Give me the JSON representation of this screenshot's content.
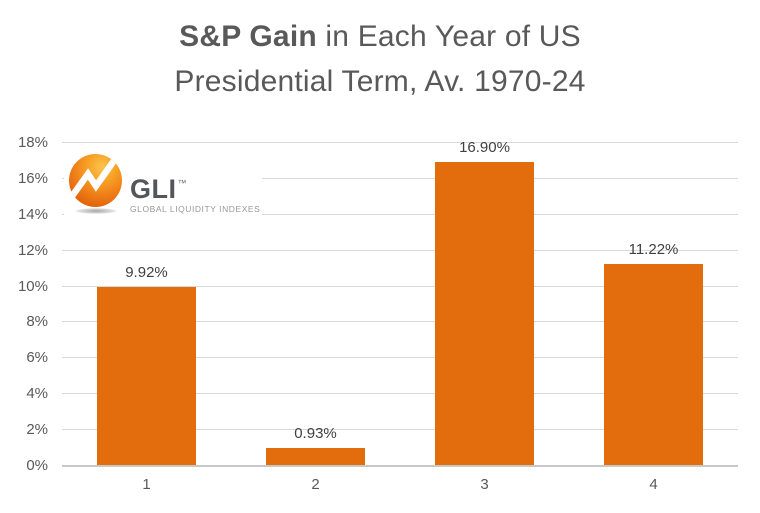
{
  "title": {
    "bold": "S&P Gain",
    "rest_line1": " in Each Year of US",
    "line2": "Presidential Term, Av. 1970-24"
  },
  "logo": {
    "name": "GLI",
    "tm": "™",
    "tagline": "GLOBAL LIQUIDITY INDEXES"
  },
  "chart_data": {
    "type": "bar",
    "title": "S&P Gain in Each Year of US Presidential Term, Av. 1970-24",
    "categories": [
      "1",
      "2",
      "3",
      "4"
    ],
    "values": [
      9.92,
      0.93,
      16.9,
      11.22
    ],
    "data_labels": [
      "9.92%",
      "0.93%",
      "16.90%",
      "11.22%"
    ],
    "xlabel": "",
    "ylabel": "",
    "ylim": [
      0,
      18
    ],
    "ytick_step": 2,
    "ytick_labels": [
      "0%",
      "2%",
      "4%",
      "6%",
      "8%",
      "10%",
      "12%",
      "14%",
      "16%",
      "18%"
    ],
    "grid": true,
    "legend": false,
    "bar_color": "#E36D0C",
    "gridline_color": "#D9D9D9",
    "axis_line_color": "#C8C8C8",
    "label_color": "#404040",
    "tick_color": "#595959",
    "bar_width_fraction": 0.586
  }
}
